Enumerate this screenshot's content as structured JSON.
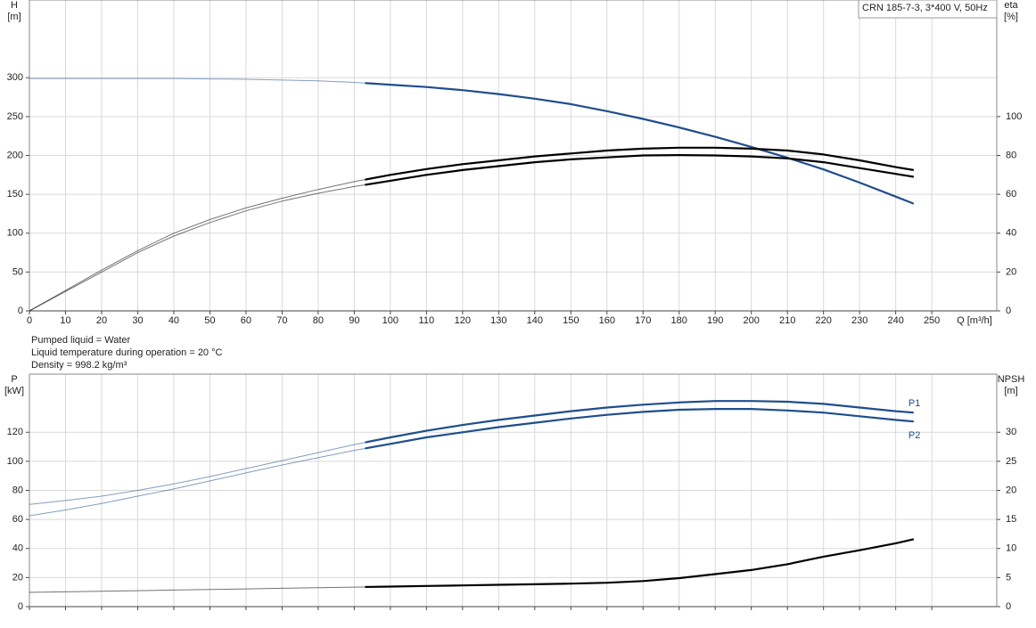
{
  "chart_data": [
    {
      "type": "line",
      "title": "CRN 185-7-3, 3*400 V, 50Hz",
      "x_label": "Q [m³/h]",
      "y_label": "H",
      "y_unit": "[m]",
      "y2_label": "eta",
      "y2_unit": "[%]",
      "x": [
        0,
        10,
        20,
        30,
        40,
        50,
        60,
        70,
        80,
        90,
        100,
        110,
        120,
        130,
        140,
        150,
        160,
        170,
        180,
        190,
        200,
        210,
        220,
        230,
        240,
        245
      ],
      "xlim": [
        0,
        268
      ],
      "xticks": [
        0,
        10,
        20,
        30,
        40,
        50,
        60,
        70,
        80,
        90,
        100,
        110,
        120,
        130,
        140,
        150,
        160,
        170,
        180,
        190,
        200,
        210,
        220,
        230,
        240,
        250
      ],
      "ylim": [
        0,
        400
      ],
      "yticks": [
        0,
        50,
        100,
        150,
        200,
        250,
        300
      ],
      "y2lim": [
        0,
        160
      ],
      "y2ticks": [
        0,
        20,
        40,
        60,
        80,
        100
      ],
      "grid": true,
      "operating_range": [
        93,
        245
      ],
      "xtick_labels": true,
      "series": [
        {
          "color": "#1f4e8c",
          "values": [
            299,
            299,
            299,
            299,
            299,
            298.5,
            298,
            297,
            296,
            294,
            291,
            288,
            284,
            279,
            273,
            266,
            257,
            247,
            236,
            224,
            211,
            197,
            182,
            165,
            147,
            138
          ]
        },
        {
          "color": "#000000",
          "axis": "y2",
          "values": [
            0,
            10.5,
            21,
            31,
            40,
            47,
            53,
            58,
            62.5,
            66.5,
            70,
            73,
            75.5,
            77.5,
            79.5,
            81,
            82.5,
            83.5,
            84,
            84,
            83.5,
            82.5,
            80.5,
            77.5,
            74,
            72.5
          ]
        },
        {
          "color": "#000000",
          "axis": "y2",
          "values": [
            0,
            10,
            20,
            30,
            38.5,
            45.5,
            51.5,
            56.5,
            60.5,
            64,
            67,
            70,
            72.5,
            74.5,
            76.5,
            78,
            79,
            80,
            80.2,
            80,
            79.5,
            78.5,
            76.5,
            73.5,
            70.5,
            69
          ]
        }
      ]
    },
    {
      "type": "line",
      "y_label": "P",
      "y_unit": "[kW]",
      "y2_label": "NPSH",
      "y2_unit": "[m]",
      "x": [
        0,
        10,
        20,
        30,
        40,
        50,
        60,
        70,
        80,
        90,
        100,
        110,
        120,
        130,
        140,
        150,
        160,
        170,
        180,
        190,
        200,
        210,
        220,
        230,
        240,
        245
      ],
      "xlim": [
        0,
        268
      ],
      "xticks": [
        0,
        10,
        20,
        30,
        40,
        50,
        60,
        70,
        80,
        90,
        100,
        110,
        120,
        130,
        140,
        150,
        160,
        170,
        180,
        190,
        200,
        210,
        220,
        230,
        240,
        250
      ],
      "ylim": [
        0,
        160
      ],
      "yticks": [
        0,
        20,
        40,
        60,
        80,
        100,
        120
      ],
      "y2lim": [
        0,
        40
      ],
      "y2ticks": [
        0,
        5,
        10,
        15,
        20,
        25,
        30
      ],
      "grid": true,
      "operating_range": [
        93,
        245
      ],
      "xtick_labels": false,
      "series": [
        {
          "name": "P1",
          "color": "#1f4e8c",
          "values": [
            70.4,
            73,
            76,
            80,
            84.5,
            89.5,
            95,
            100.5,
            106,
            111.5,
            116.5,
            121,
            125,
            128.5,
            131.5,
            134.5,
            137,
            139,
            140.5,
            141.5,
            141.5,
            141,
            139.5,
            137,
            134.5,
            133.5
          ]
        },
        {
          "name": "P2",
          "color": "#1f4e8c",
          "values": [
            62.5,
            66.5,
            71,
            76,
            81,
            86.5,
            92,
            97.5,
            102.5,
            107.5,
            112,
            116.5,
            120,
            123.5,
            126.5,
            129.5,
            132,
            134,
            135.5,
            136,
            136,
            135,
            133.5,
            131,
            128.5,
            127.4
          ]
        },
        {
          "color": "#000000",
          "axis": "y2",
          "values": [
            2.45,
            2.55,
            2.65,
            2.75,
            2.85,
            2.95,
            3.05,
            3.15,
            3.25,
            3.35,
            3.45,
            3.55,
            3.65,
            3.75,
            3.85,
            3.95,
            4.1,
            4.4,
            4.9,
            5.6,
            6.3,
            7.3,
            8.6,
            9.7,
            10.9,
            11.6
          ]
        }
      ]
    }
  ],
  "notes": [
    "Pumped liquid = Water",
    "Liquid temperature during operation = 20 °C",
    "Density = 998.2 kg/m³"
  ]
}
